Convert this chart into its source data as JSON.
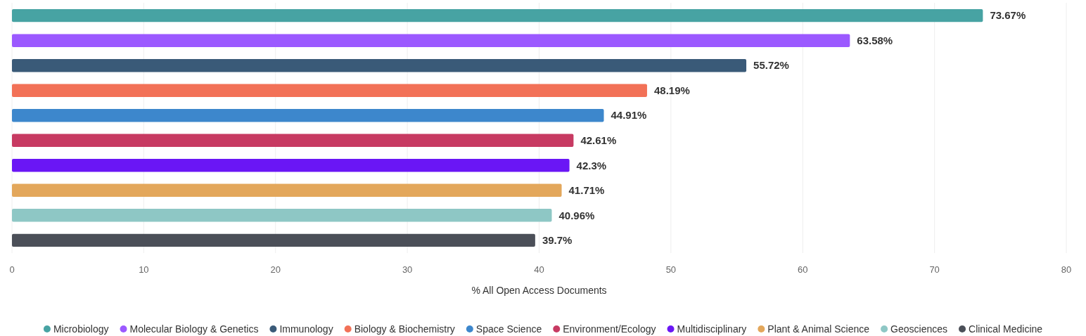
{
  "chart_data": {
    "type": "bar",
    "orientation": "horizontal",
    "xlabel": "% All Open Access Documents",
    "categories": [
      null,
      null,
      null,
      null,
      null,
      null,
      null,
      null,
      null,
      null
    ],
    "series": [
      {
        "name": "Microbiology",
        "color": "#47a3a3",
        "values": [
          73.67,
          null,
          null,
          null,
          null,
          null,
          null,
          null,
          null,
          null
        ],
        "value_labels": [
          "73.67%",
          null,
          null,
          null,
          null,
          null,
          null,
          null,
          null,
          null
        ]
      },
      {
        "name": "Molecular Biology & Genetics",
        "color": "#9b59ff",
        "values": [
          null,
          63.58,
          null,
          null,
          null,
          null,
          null,
          null,
          null,
          null
        ],
        "value_labels": [
          null,
          "63.58%",
          null,
          null,
          null,
          null,
          null,
          null,
          null,
          null
        ]
      },
      {
        "name": "Immunology",
        "color": "#3a5a78",
        "values": [
          null,
          null,
          55.72,
          null,
          null,
          null,
          null,
          null,
          null,
          null
        ],
        "value_labels": [
          null,
          null,
          "55.72%",
          null,
          null,
          null,
          null,
          null,
          null,
          null
        ]
      },
      {
        "name": "Biology & Biochemistry",
        "color": "#f27157",
        "values": [
          null,
          null,
          null,
          48.19,
          null,
          null,
          null,
          null,
          null,
          null
        ],
        "value_labels": [
          null,
          null,
          null,
          "48.19%",
          null,
          null,
          null,
          null,
          null,
          null
        ]
      },
      {
        "name": "Space Science",
        "color": "#3d87cc",
        "values": [
          null,
          null,
          null,
          null,
          44.91,
          null,
          null,
          null,
          null,
          null
        ],
        "value_labels": [
          null,
          null,
          null,
          null,
          "44.91%",
          null,
          null,
          null,
          null,
          null
        ]
      },
      {
        "name": "Environment/Ecology",
        "color": "#c73a62",
        "values": [
          null,
          null,
          null,
          null,
          null,
          42.61,
          null,
          null,
          null,
          null
        ],
        "value_labels": [
          null,
          null,
          null,
          null,
          null,
          "42.61%",
          null,
          null,
          null,
          null
        ]
      },
      {
        "name": "Multidisciplinary",
        "color": "#6a16f5",
        "values": [
          null,
          null,
          null,
          null,
          null,
          null,
          42.3,
          null,
          null,
          null
        ],
        "value_labels": [
          null,
          null,
          null,
          null,
          null,
          null,
          "42.3%",
          null,
          null,
          null
        ]
      },
      {
        "name": "Plant & Animal Science",
        "color": "#e3a75b",
        "values": [
          null,
          null,
          null,
          null,
          null,
          null,
          null,
          41.71,
          null,
          null
        ],
        "value_labels": [
          null,
          null,
          null,
          null,
          null,
          null,
          null,
          "41.71%",
          null,
          null
        ]
      },
      {
        "name": "Geosciences",
        "color": "#8ec7c5",
        "values": [
          null,
          null,
          null,
          null,
          null,
          null,
          null,
          null,
          40.96,
          null
        ],
        "value_labels": [
          null,
          null,
          null,
          null,
          null,
          null,
          null,
          null,
          "40.96%",
          null
        ]
      },
      {
        "name": "Clinical Medicine",
        "color": "#4b4f58",
        "values": [
          null,
          null,
          null,
          null,
          null,
          null,
          null,
          null,
          null,
          39.7
        ],
        "value_labels": [
          null,
          null,
          null,
          null,
          null,
          null,
          null,
          null,
          null,
          "39.7%"
        ]
      }
    ],
    "xlim": [
      0,
      80
    ],
    "xticks": [
      0,
      10,
      20,
      30,
      40,
      50,
      60,
      70,
      80
    ],
    "grid": "x",
    "legend": "bottom",
    "tick_labels": "x"
  }
}
